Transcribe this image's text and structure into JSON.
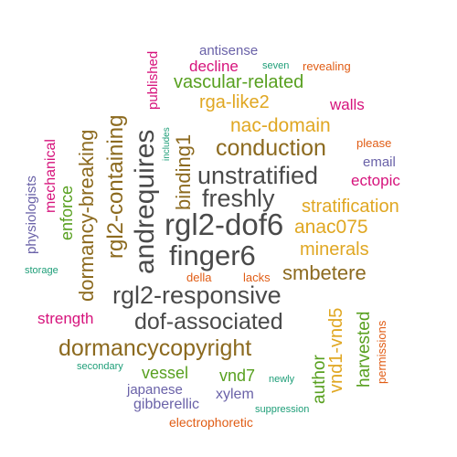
{
  "words": [
    {
      "text": "rgl2-dof6",
      "color": "#4a4a4a"
    },
    {
      "text": "andrequires",
      "color": "#4a4a4a"
    },
    {
      "text": "finger6",
      "color": "#4a4a4a"
    },
    {
      "text": "rgl2-responsive",
      "color": "#4a4a4a"
    },
    {
      "text": "unstratified",
      "color": "#4a4a4a"
    },
    {
      "text": "freshly",
      "color": "#4a4a4a"
    },
    {
      "text": "dof-associated",
      "color": "#4a4a4a"
    },
    {
      "text": "dormancycopyright",
      "color": "#8c6a1f"
    },
    {
      "text": "rgl2-containing",
      "color": "#8c6a1f"
    },
    {
      "text": "dormancy-breaking",
      "color": "#8c6a1f"
    },
    {
      "text": "conduction",
      "color": "#8c6a1f"
    },
    {
      "text": "binding1",
      "color": "#8c6a1f"
    },
    {
      "text": "smbetere",
      "color": "#8c6a1f"
    },
    {
      "text": "stratification",
      "color": "#e0a722"
    },
    {
      "text": "nac-domain",
      "color": "#e0a722"
    },
    {
      "text": "anac075",
      "color": "#e0a722"
    },
    {
      "text": "minerals",
      "color": "#e0a722"
    },
    {
      "text": "rga-like2",
      "color": "#e0a722"
    },
    {
      "text": "vnd1-vnd5",
      "color": "#e0a722"
    },
    {
      "text": "vascular-related",
      "color": "#58a020"
    },
    {
      "text": "harvested",
      "color": "#58a020"
    },
    {
      "text": "author",
      "color": "#58a020"
    },
    {
      "text": "vessel",
      "color": "#58a020"
    },
    {
      "text": "vnd7",
      "color": "#58a020"
    },
    {
      "text": "enforce",
      "color": "#58a020"
    },
    {
      "text": "walls",
      "color": "#d6137c"
    },
    {
      "text": "decline",
      "color": "#d6137c"
    },
    {
      "text": "ectopic",
      "color": "#d6137c"
    },
    {
      "text": "strength",
      "color": "#d6137c"
    },
    {
      "text": "mechanical",
      "color": "#d6137c"
    },
    {
      "text": "published",
      "color": "#d6137c"
    },
    {
      "text": "email",
      "color": "#6a62a8"
    },
    {
      "text": "antisense",
      "color": "#6a62a8"
    },
    {
      "text": "xylem",
      "color": "#6a62a8"
    },
    {
      "text": "japanese",
      "color": "#6a62a8"
    },
    {
      "text": "gibberellic",
      "color": "#6a62a8"
    },
    {
      "text": "physiologists",
      "color": "#6a62a8"
    },
    {
      "text": "please",
      "color": "#e05c14"
    },
    {
      "text": "revealing",
      "color": "#e05c14"
    },
    {
      "text": "della",
      "color": "#e05c14"
    },
    {
      "text": "lacks",
      "color": "#e05c14"
    },
    {
      "text": "electrophoretic",
      "color": "#e05c14"
    },
    {
      "text": "permissions",
      "color": "#e05c14"
    },
    {
      "text": "seven",
      "color": "#1e9e78"
    },
    {
      "text": "includes",
      "color": "#1e9e78"
    },
    {
      "text": "storage",
      "color": "#1e9e78"
    },
    {
      "text": "secondary",
      "color": "#1e9e78"
    },
    {
      "text": "newly",
      "color": "#1e9e78"
    },
    {
      "text": "suppression",
      "color": "#1e9e78"
    }
  ]
}
